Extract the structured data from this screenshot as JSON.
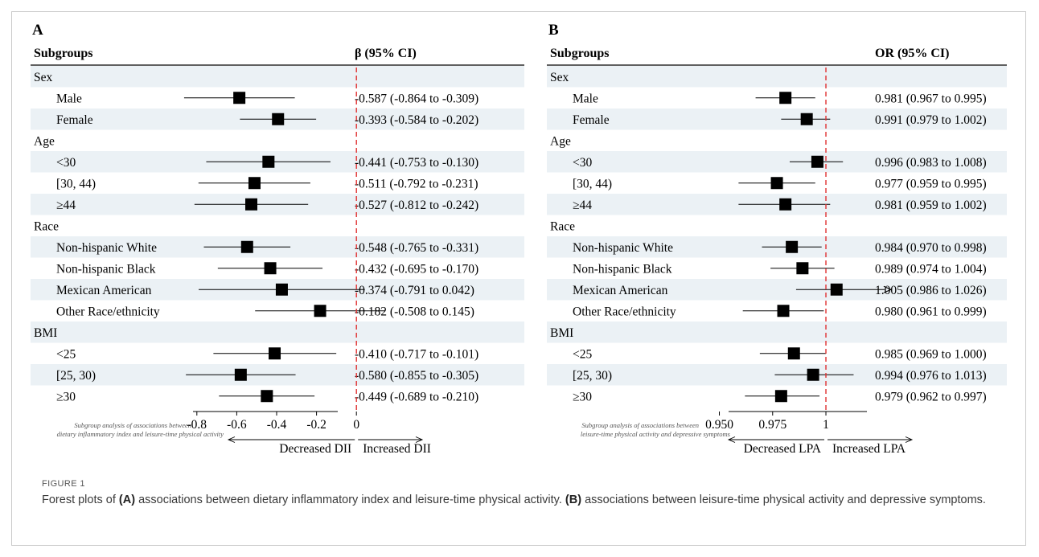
{
  "figure": {
    "label": "FIGURE 1",
    "caption_parts": [
      "Forest plots of ",
      "(A)",
      " associations between dietary inflammatory index and leisure-time physical activity. ",
      "(B)",
      " associations between leisure-time physical activity and depressive symptoms."
    ]
  },
  "chart_data": [
    {
      "type": "forest",
      "panel_label": "A",
      "header_left": "Subgroups",
      "header_right": "β (95% CI)",
      "x_ticks": [
        "-0.8",
        "-0.6",
        "-0.4",
        "-0.2",
        "0"
      ],
      "x_tick_values": [
        -0.8,
        -0.6,
        -0.4,
        -0.2,
        0
      ],
      "xlim": [
        -0.9,
        0.1
      ],
      "reference_line": 0,
      "reference_color": "#e03030",
      "left_direction_label": "Decreased DII",
      "right_direction_label": "Increased DII",
      "footnote_lines": [
        "Subgroup analysis of associations between",
        "dietary inflammatory index and leisure-time physical activity"
      ],
      "rows": [
        {
          "label": "Sex",
          "group": true
        },
        {
          "label": "Male",
          "est": -0.587,
          "lo": -0.864,
          "hi": -0.309,
          "text": "-0.587 (-0.864 to -0.309)"
        },
        {
          "label": "Female",
          "est": -0.393,
          "lo": -0.584,
          "hi": -0.202,
          "text": "-0.393 (-0.584 to -0.202)"
        },
        {
          "label": "Age",
          "group": true
        },
        {
          "label": "<30",
          "est": -0.441,
          "lo": -0.753,
          "hi": -0.13,
          "text": "-0.441 (-0.753 to -0.130)"
        },
        {
          "label": "[30, 44)",
          "est": -0.511,
          "lo": -0.792,
          "hi": -0.231,
          "text": "-0.511 (-0.792 to -0.231)"
        },
        {
          "label": "≥44",
          "est": -0.527,
          "lo": -0.812,
          "hi": -0.242,
          "text": "-0.527 (-0.812 to -0.242)"
        },
        {
          "label": "Race",
          "group": true
        },
        {
          "label": "Non-hispanic White",
          "est": -0.548,
          "lo": -0.765,
          "hi": -0.331,
          "text": "-0.548 (-0.765 to -0.331)"
        },
        {
          "label": "Non-hispanic Black",
          "est": -0.432,
          "lo": -0.695,
          "hi": -0.17,
          "text": "-0.432 (-0.695 to -0.170)"
        },
        {
          "label": "Mexican American",
          "est": -0.374,
          "lo": -0.791,
          "hi": 0.042,
          "text": "-0.374 (-0.791 to 0.042)"
        },
        {
          "label": "Other Race/ethnicity",
          "est": -0.182,
          "lo": -0.508,
          "hi": 0.145,
          "text": "-0.182 (-0.508 to 0.145)"
        },
        {
          "label": "BMI",
          "group": true
        },
        {
          "label": "<25",
          "est": -0.41,
          "lo": -0.717,
          "hi": -0.101,
          "text": "-0.410 (-0.717 to -0.101)"
        },
        {
          "label": "[25, 30)",
          "est": -0.58,
          "lo": -0.855,
          "hi": -0.305,
          "text": "-0.580 (-0.855 to -0.305)"
        },
        {
          "label": "≥30",
          "est": -0.449,
          "lo": -0.689,
          "hi": -0.21,
          "text": "-0.449 (-0.689 to -0.210)"
        }
      ]
    },
    {
      "type": "forest",
      "panel_label": "B",
      "header_left": "Subgroups",
      "header_right": "OR (95% CI)",
      "x_ticks": [
        "0.950",
        "0.975",
        "1"
      ],
      "x_tick_values": [
        0.95,
        0.975,
        1.0
      ],
      "xlim": [
        0.9415,
        1.0215
      ],
      "reference_line": 1.0,
      "reference_color": "#e03030",
      "left_direction_label": "Decreased LPA",
      "right_direction_label": "Increased LPA",
      "footnote_lines": [
        "Subgroup analysis of associations between",
        "leisure-time physical activity and depressive symptoms"
      ],
      "rows": [
        {
          "label": "Sex",
          "group": true
        },
        {
          "label": "Male",
          "est": 0.981,
          "lo": 0.967,
          "hi": 0.995,
          "text": "0.981 (0.967 to 0.995)"
        },
        {
          "label": "Female",
          "est": 0.991,
          "lo": 0.979,
          "hi": 1.002,
          "text": "0.991 (0.979 to 1.002)"
        },
        {
          "label": "Age",
          "group": true
        },
        {
          "label": "<30",
          "est": 0.996,
          "lo": 0.983,
          "hi": 1.008,
          "text": "0.996 (0.983 to 1.008)"
        },
        {
          "label": "[30, 44)",
          "est": 0.977,
          "lo": 0.959,
          "hi": 0.995,
          "text": "0.977 (0.959 to 0.995)"
        },
        {
          "label": "≥44",
          "est": 0.981,
          "lo": 0.959,
          "hi": 1.002,
          "text": "0.981 (0.959 to 1.002)"
        },
        {
          "label": "Race",
          "group": true
        },
        {
          "label": "Non-hispanic White",
          "est": 0.984,
          "lo": 0.97,
          "hi": 0.998,
          "text": "0.984 (0.970 to 0.998)"
        },
        {
          "label": "Non-hispanic Black",
          "est": 0.989,
          "lo": 0.974,
          "hi": 1.004,
          "text": "0.989 (0.974 to 1.004)"
        },
        {
          "label": "Mexican American",
          "est": 1.005,
          "lo": 0.986,
          "hi": 1.026,
          "text": "1.005 (0.986 to 1.026)",
          "arrow_right": true
        },
        {
          "label": "Other Race/ethnicity",
          "est": 0.98,
          "lo": 0.961,
          "hi": 0.999,
          "text": "0.980 (0.961 to 0.999)"
        },
        {
          "label": "BMI",
          "group": true
        },
        {
          "label": "<25",
          "est": 0.985,
          "lo": 0.969,
          "hi": 1.0,
          "text": "0.985 (0.969 to 1.000)"
        },
        {
          "label": "[25, 30)",
          "est": 0.994,
          "lo": 0.976,
          "hi": 1.013,
          "text": "0.994 (0.976 to 1.013)"
        },
        {
          "label": "≥30",
          "est": 0.979,
          "lo": 0.962,
          "hi": 0.997,
          "text": "0.979 (0.962 to 0.997)"
        }
      ]
    }
  ]
}
